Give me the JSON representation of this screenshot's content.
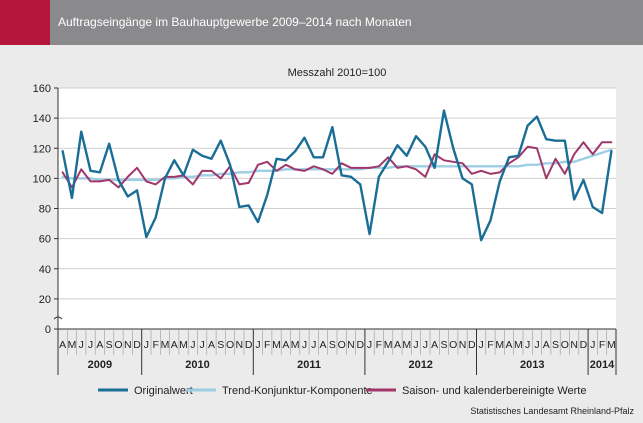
{
  "header": {
    "title": "Auftragseingänge im Bauhauptgewerbe 2009–2014 nach Monaten",
    "accent_color": "#b5163c",
    "background_color": "#8a8a8d"
  },
  "chart_data": {
    "type": "line",
    "title": "Messzahl 2010=100",
    "ylim": [
      0,
      160
    ],
    "yticks": [
      0,
      20,
      40,
      60,
      80,
      100,
      120,
      140,
      160
    ],
    "grid": true,
    "legend_position": "bottom",
    "month_labels": [
      "A",
      "M",
      "J",
      "J",
      "A",
      "S",
      "O",
      "N",
      "D",
      "J",
      "F",
      "M",
      "A",
      "M",
      "J",
      "J",
      "A",
      "S",
      "O",
      "N",
      "D",
      "J",
      "F",
      "M",
      "A",
      "M",
      "J",
      "J",
      "A",
      "S",
      "O",
      "N",
      "D",
      "J",
      "F",
      "M",
      "A",
      "M",
      "J",
      "J",
      "A",
      "S",
      "O",
      "N",
      "D",
      "J",
      "F",
      "M",
      "A",
      "M",
      "J",
      "J",
      "A",
      "S",
      "O",
      "N",
      "D",
      "J",
      "F",
      "M"
    ],
    "year_groups": [
      {
        "label": "2009",
        "months": 9
      },
      {
        "label": "2010",
        "months": 12
      },
      {
        "label": "2011",
        "months": 12
      },
      {
        "label": "2012",
        "months": 12
      },
      {
        "label": "2013",
        "months": 12
      },
      {
        "label": "2014",
        "months": 3
      }
    ],
    "series": [
      {
        "name": "Originalwert",
        "color": "#1a6e96",
        "values": [
          118,
          87,
          131,
          105,
          104,
          123,
          99,
          88,
          92,
          61,
          74,
          100,
          112,
          102,
          119,
          115,
          113,
          125,
          109,
          81,
          82,
          71,
          89,
          113,
          112,
          118,
          127,
          114,
          114,
          134,
          102,
          101,
          96,
          63,
          101,
          111,
          122,
          115,
          128,
          121,
          107,
          145,
          120,
          100,
          96,
          59,
          72,
          98,
          114,
          115,
          135,
          141,
          126,
          125,
          125,
          86,
          99,
          81,
          77,
          118
        ],
        "width": 2.4
      },
      {
        "name": "Trend-Konjunktur-Komponente",
        "color": "#9dcee3",
        "values": [
          101,
          100,
          100,
          100,
          99,
          99,
          99,
          99,
          99,
          99,
          99,
          100,
          100,
          101,
          101,
          102,
          102,
          103,
          103,
          104,
          104,
          105,
          105,
          105,
          106,
          106,
          106,
          106,
          106,
          106,
          106,
          106,
          106,
          107,
          107,
          107,
          108,
          108,
          108,
          108,
          108,
          108,
          108,
          108,
          108,
          108,
          108,
          108,
          108,
          108,
          109,
          109,
          110,
          110,
          111,
          111,
          113,
          115,
          117,
          119
        ],
        "width": 2.4
      },
      {
        "name": "Saison- und kalenderbereinigte Werte",
        "color": "#a0366a",
        "values": [
          104,
          94,
          106,
          98,
          98,
          99,
          94,
          101,
          107,
          98,
          96,
          101,
          101,
          102,
          96,
          105,
          105,
          100,
          108,
          96,
          97,
          109,
          111,
          105,
          109,
          106,
          105,
          108,
          106,
          103,
          110,
          107,
          107,
          107,
          108,
          114,
          107,
          108,
          106,
          101,
          116,
          112,
          111,
          110,
          103,
          105,
          103,
          104,
          110,
          114,
          121,
          120,
          100,
          113,
          103,
          116,
          124,
          116,
          124,
          124
        ],
        "width": 2.0
      }
    ]
  },
  "source": "Statistisches Landesamt Rheinland-Pfalz"
}
